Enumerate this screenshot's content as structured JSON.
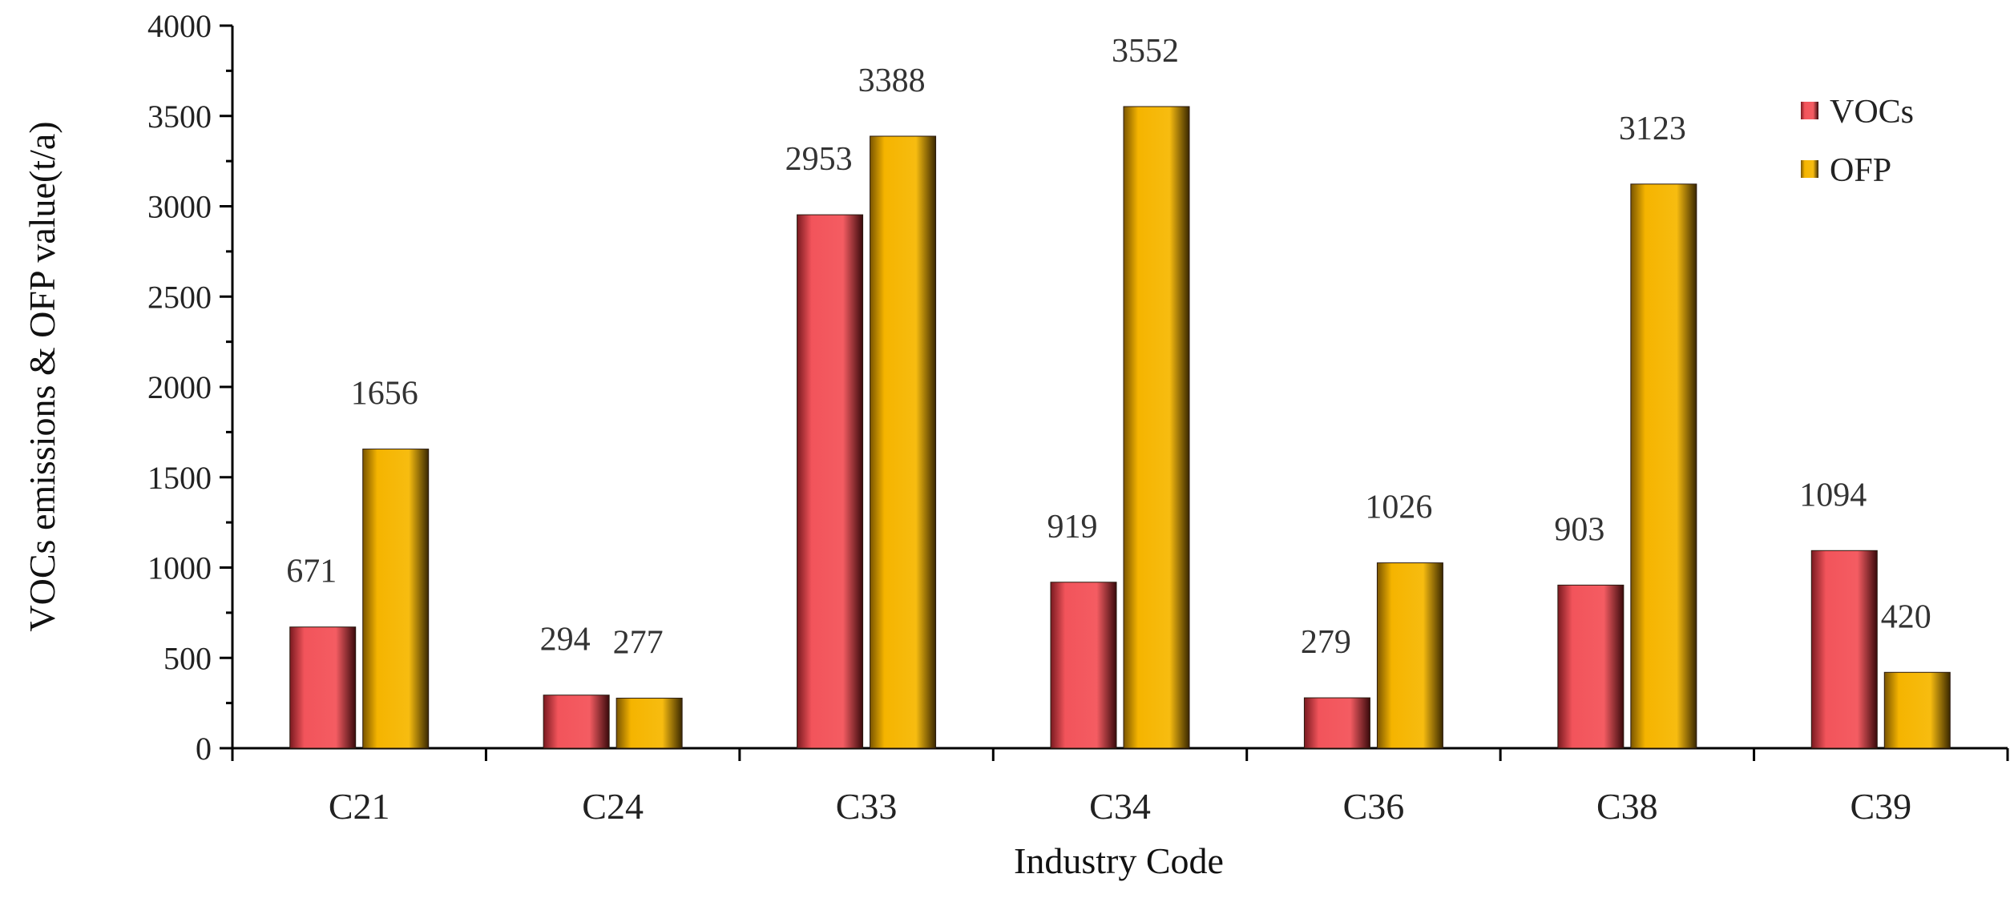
{
  "chart_data": {
    "type": "bar",
    "title": "",
    "xlabel": "Industry Code",
    "ylabel": "VOCs emissions & OFP value(t/a)",
    "categories": [
      "C21",
      "C24",
      "C33",
      "C34",
      "C36",
      "C38",
      "C39"
    ],
    "series": [
      {
        "name": "VOCs",
        "values": [
          671,
          294,
          2953,
          919,
          279,
          903,
          1094
        ],
        "color": "#f2545b"
      },
      {
        "name": "OFP",
        "values": [
          1656,
          277,
          3388,
          3552,
          1026,
          3123,
          420
        ],
        "color": "#f5b400"
      }
    ],
    "ylim": [
      0,
      4000
    ],
    "yticks": [
      0,
      500,
      1000,
      1500,
      2000,
      2500,
      3000,
      3500,
      4000
    ],
    "legend_position": "top-right",
    "grid": false
  }
}
